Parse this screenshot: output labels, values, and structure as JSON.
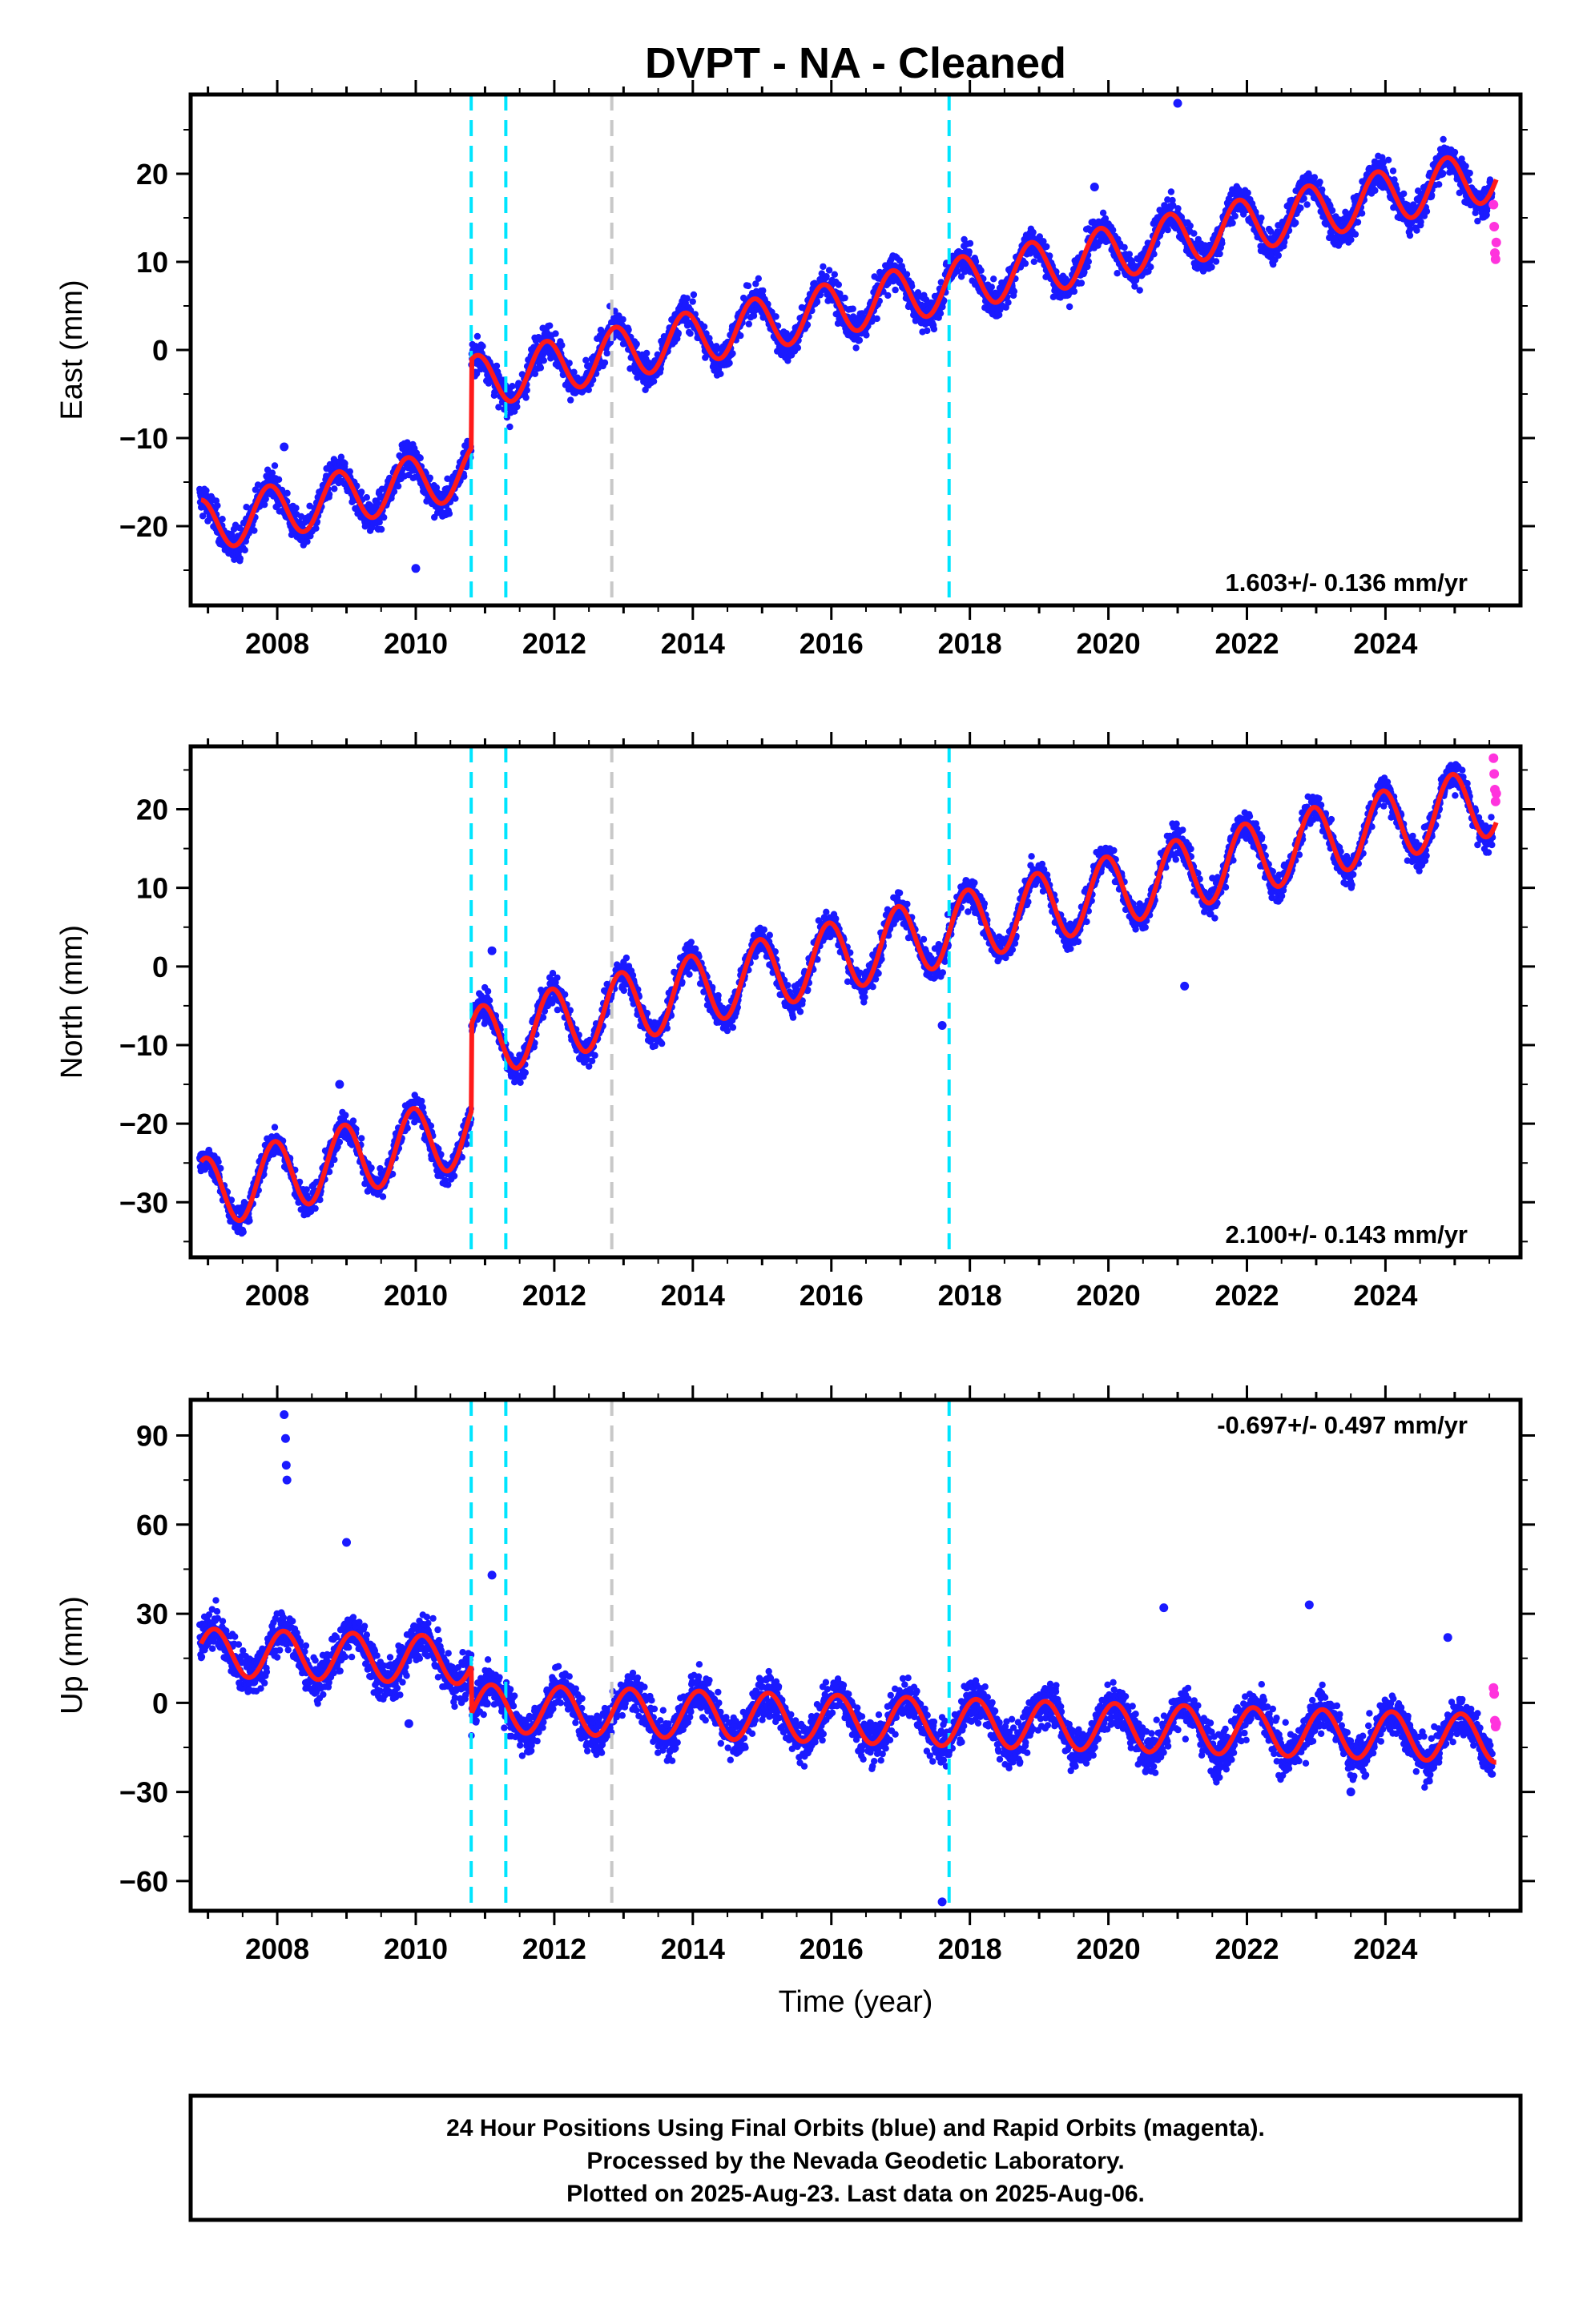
{
  "title": "DVPT  - NA - Cleaned",
  "xlabel": "Time (year)",
  "colors": {
    "final": "#1a1aff",
    "rapid": "#ff33dd",
    "model": "#ff1a1a",
    "cyan_line": "#00e5ff",
    "gray_line": "#c8c8c8"
  },
  "chart_data": [
    {
      "type": "scatter",
      "ylabel": "East (mm)",
      "xlim": [
        2006.75,
        2025.95
      ],
      "ylim": [
        -29,
        29
      ],
      "xticks": [
        2008,
        2010,
        2012,
        2014,
        2016,
        2018,
        2020,
        2022,
        2024
      ],
      "yticks": [
        -20,
        -10,
        0,
        10,
        20
      ],
      "rate_label": "1.603+/- 0.136 mm/yr",
      "rate_position": "bottom-right",
      "model": {
        "a": -20.0,
        "slope": 1.603,
        "amp": 3.0,
        "phase": 2.3,
        "offsets": [
          [
            2010.8,
            10.0
          ]
        ]
      },
      "rapid_points": [
        [
          2025.56,
          16.5
        ],
        [
          2025.57,
          14.0
        ],
        [
          2025.58,
          11.0
        ],
        [
          2025.59,
          10.3
        ],
        [
          2025.6,
          12.2
        ]
      ],
      "outliers": [
        [
          2021.0,
          28.0
        ],
        [
          2019.8,
          18.5
        ],
        [
          2008.1,
          -11.0
        ],
        [
          2010.0,
          -24.8
        ],
        [
          2011.0,
          -1.5
        ]
      ]
    },
    {
      "type": "scatter",
      "ylabel": "North (mm)",
      "xlim": [
        2006.75,
        2025.95
      ],
      "ylim": [
        -37,
        28
      ],
      "xticks": [
        2008,
        2010,
        2012,
        2014,
        2016,
        2018,
        2020,
        2022,
        2024
      ],
      "yticks": [
        -30,
        -20,
        -10,
        0,
        10,
        20
      ],
      "rate_label": "2.100+/- 0.143 mm/yr",
      "rate_position": "bottom-right",
      "model": {
        "a": -29.0,
        "slope": 2.1,
        "amp": 4.5,
        "phase": 1.8,
        "offsets": [
          [
            2010.8,
            11.0
          ]
        ]
      },
      "rapid_points": [
        [
          2025.56,
          26.5
        ],
        [
          2025.57,
          24.5
        ],
        [
          2025.58,
          22.5
        ],
        [
          2025.59,
          21.0
        ],
        [
          2025.6,
          22.0
        ]
      ],
      "outliers": [
        [
          2008.9,
          -15.0
        ],
        [
          2021.1,
          -2.5
        ],
        [
          2017.6,
          -7.5
        ],
        [
          2011.1,
          2.0
        ]
      ]
    },
    {
      "type": "scatter",
      "ylabel": "Up (mm)",
      "xlim": [
        2006.75,
        2025.95
      ],
      "ylim": [
        -70,
        102
      ],
      "xticks": [
        2008,
        2010,
        2012,
        2014,
        2016,
        2018,
        2020,
        2022,
        2024
      ],
      "yticks": [
        -60,
        -30,
        0,
        30,
        60,
        90
      ],
      "rate_label": "-0.697+/- 0.497 mm/yr",
      "rate_position": "top-right",
      "model": {
        "a": 17.0,
        "slope": -0.697,
        "amp": 8.0,
        "phase": 1.0,
        "offsets": [
          [
            2010.8,
            -16.0
          ]
        ]
      },
      "rapid_points": [
        [
          2025.56,
          5.0
        ],
        [
          2025.57,
          3.0
        ],
        [
          2025.58,
          -6.0
        ],
        [
          2025.59,
          -8.0
        ],
        [
          2025.6,
          -7.0
        ]
      ],
      "outliers": [
        [
          2008.1,
          97.0
        ],
        [
          2008.12,
          89.0
        ],
        [
          2008.13,
          80.0
        ],
        [
          2008.14,
          75.0
        ],
        [
          2009.0,
          54.0
        ],
        [
          2011.1,
          43.0
        ],
        [
          2020.8,
          32.0
        ],
        [
          2022.9,
          33.0
        ],
        [
          2024.9,
          22.0
        ],
        [
          2023.5,
          -30.0
        ],
        [
          2017.6,
          -67.0
        ],
        [
          2009.9,
          -7.0
        ]
      ]
    }
  ],
  "event_lines": [
    {
      "x": 2010.8,
      "kind": "cyan"
    },
    {
      "x": 2011.3,
      "kind": "cyan"
    },
    {
      "x": 2012.83,
      "kind": "gray"
    },
    {
      "x": 2017.7,
      "kind": "cyan"
    }
  ],
  "footer": {
    "line1": "24 Hour Positions Using Final Orbits (blue) and Rapid Orbits (magenta).",
    "line2": "Processed by the Nevada Geodetic Laboratory.",
    "line3": "Plotted on 2025-Aug-23. Last data on 2025-Aug-06."
  }
}
